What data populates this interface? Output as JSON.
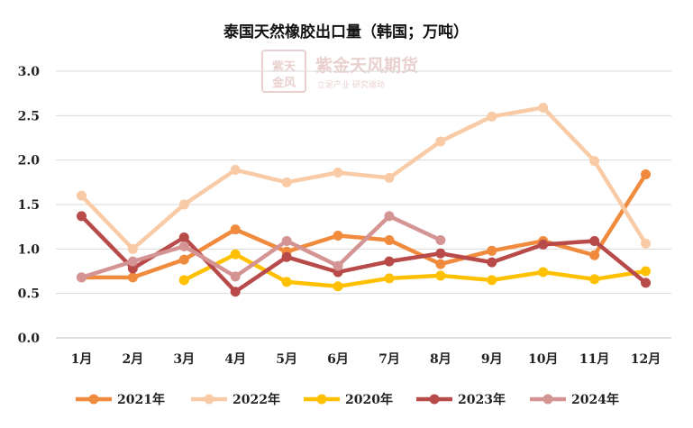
{
  "chart_data": {
    "type": "line",
    "title": "泰国天然橡胶出口量（韩国；万吨）",
    "xlabel": "",
    "ylabel": "",
    "categories": [
      "1月",
      "2月",
      "3月",
      "4月",
      "5月",
      "6月",
      "7月",
      "8月",
      "9月",
      "10月",
      "11月",
      "12月"
    ],
    "yticks": [
      "0.0",
      "0.5",
      "1.0",
      "1.5",
      "2.0",
      "2.5",
      "3.0"
    ],
    "ylim": [
      0,
      3.0
    ],
    "grid": "horizontal",
    "legend_position": "bottom",
    "series": [
      {
        "name": "2021年",
        "color": "#f08a3c",
        "values": [
          0.68,
          0.68,
          0.88,
          1.22,
          0.97,
          1.15,
          1.1,
          0.83,
          0.98,
          1.09,
          0.93,
          1.84
        ]
      },
      {
        "name": "2022年",
        "color": "#f8cba6",
        "values": [
          1.6,
          1.0,
          1.5,
          1.89,
          1.75,
          1.86,
          1.8,
          2.21,
          2.49,
          2.59,
          1.99,
          1.06
        ]
      },
      {
        "name": "2020年",
        "color": "#ffc000",
        "values": [
          null,
          null,
          0.65,
          0.94,
          0.63,
          0.58,
          0.67,
          0.7,
          0.65,
          0.74,
          0.66,
          0.75
        ]
      },
      {
        "name": "2023年",
        "color": "#b84a4a",
        "values": [
          1.37,
          0.78,
          1.13,
          0.52,
          0.91,
          0.74,
          0.86,
          0.95,
          0.85,
          1.05,
          1.09,
          0.62
        ]
      },
      {
        "name": "2024年",
        "color": "#d49494",
        "values": [
          0.68,
          0.86,
          1.03,
          0.69,
          1.09,
          0.81,
          1.37,
          1.1,
          null,
          null,
          null,
          null
        ]
      }
    ]
  },
  "watermark": {
    "company": "紫金天风期货",
    "slogan": "立足产业 研究驱动"
  }
}
